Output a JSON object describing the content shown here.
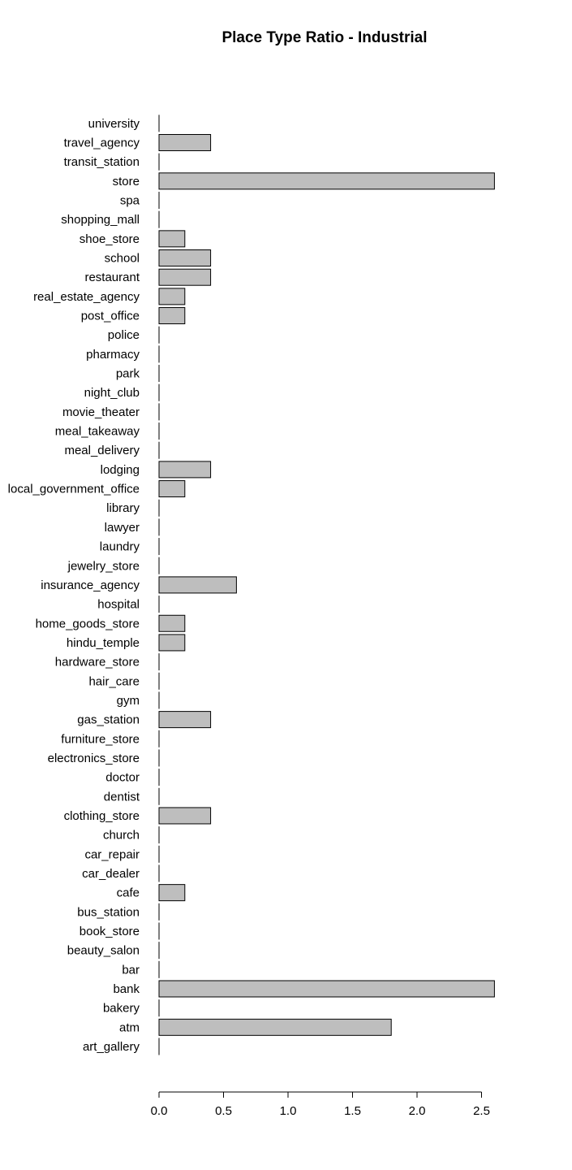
{
  "chart_data": {
    "type": "bar",
    "orientation": "horizontal",
    "title": "Place Type Ratio - Industrial",
    "xlabel": "",
    "ylabel": "",
    "xlim": [
      0,
      2.6
    ],
    "x_ticks": [
      "0.0",
      "0.5",
      "1.0",
      "1.5",
      "2.0",
      "2.5"
    ],
    "bar_color": "#bebebe",
    "grid": false,
    "categories": [
      "art_gallery",
      "atm",
      "bakery",
      "bank",
      "bar",
      "beauty_salon",
      "book_store",
      "bus_station",
      "cafe",
      "car_dealer",
      "car_repair",
      "church",
      "clothing_store",
      "dentist",
      "doctor",
      "electronics_store",
      "furniture_store",
      "gas_station",
      "gym",
      "hair_care",
      "hardware_store",
      "hindu_temple",
      "home_goods_store",
      "hospital",
      "insurance_agency",
      "jewelry_store",
      "laundry",
      "lawyer",
      "library",
      "local_government_office",
      "lodging",
      "meal_delivery",
      "meal_takeaway",
      "movie_theater",
      "night_club",
      "park",
      "pharmacy",
      "police",
      "post_office",
      "real_estate_agency",
      "restaurant",
      "school",
      "shoe_store",
      "shopping_mall",
      "spa",
      "store",
      "transit_station",
      "travel_agency",
      "university"
    ],
    "values": [
      0,
      1.8,
      0,
      2.6,
      0,
      0,
      0,
      0,
      0.2,
      0,
      0,
      0,
      0.4,
      0,
      0,
      0,
      0,
      0.4,
      0,
      0,
      0,
      0.2,
      0.2,
      0,
      0.6,
      0,
      0,
      0,
      0,
      0.2,
      0.4,
      0,
      0,
      0,
      0,
      0,
      0,
      0,
      0.2,
      0.2,
      0.4,
      0.4,
      0.2,
      0,
      0,
      2.6,
      0,
      0.4,
      0
    ]
  }
}
